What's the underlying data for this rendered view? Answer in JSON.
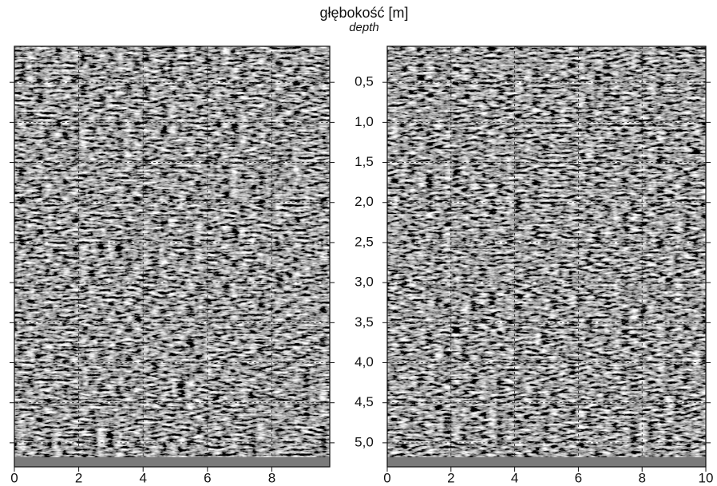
{
  "chart_data": {
    "type": "radargram",
    "title": "głębokość [m]",
    "subtitle": "depth",
    "ylim": [
      0.05,
      5.3
    ],
    "yticks": [
      {
        "value": 0.5,
        "label": "0,5"
      },
      {
        "value": 1.0,
        "label": "1,0"
      },
      {
        "value": 1.5,
        "label": "1,5"
      },
      {
        "value": 2.0,
        "label": "2,0"
      },
      {
        "value": 2.5,
        "label": "2,5"
      },
      {
        "value": 3.0,
        "label": "3,0"
      },
      {
        "value": 3.5,
        "label": "3,5"
      },
      {
        "value": 4.0,
        "label": "4,0"
      },
      {
        "value": 4.5,
        "label": "4,5"
      },
      {
        "value": 5.0,
        "label": "5,0"
      }
    ],
    "grid": true,
    "panels": [
      {
        "xlim": [
          0,
          9.8
        ],
        "xticks": [
          0,
          2,
          4,
          6,
          8
        ]
      },
      {
        "xlim": [
          0,
          10
        ],
        "xticks": [
          0,
          2,
          4,
          6,
          8,
          10
        ]
      }
    ]
  }
}
